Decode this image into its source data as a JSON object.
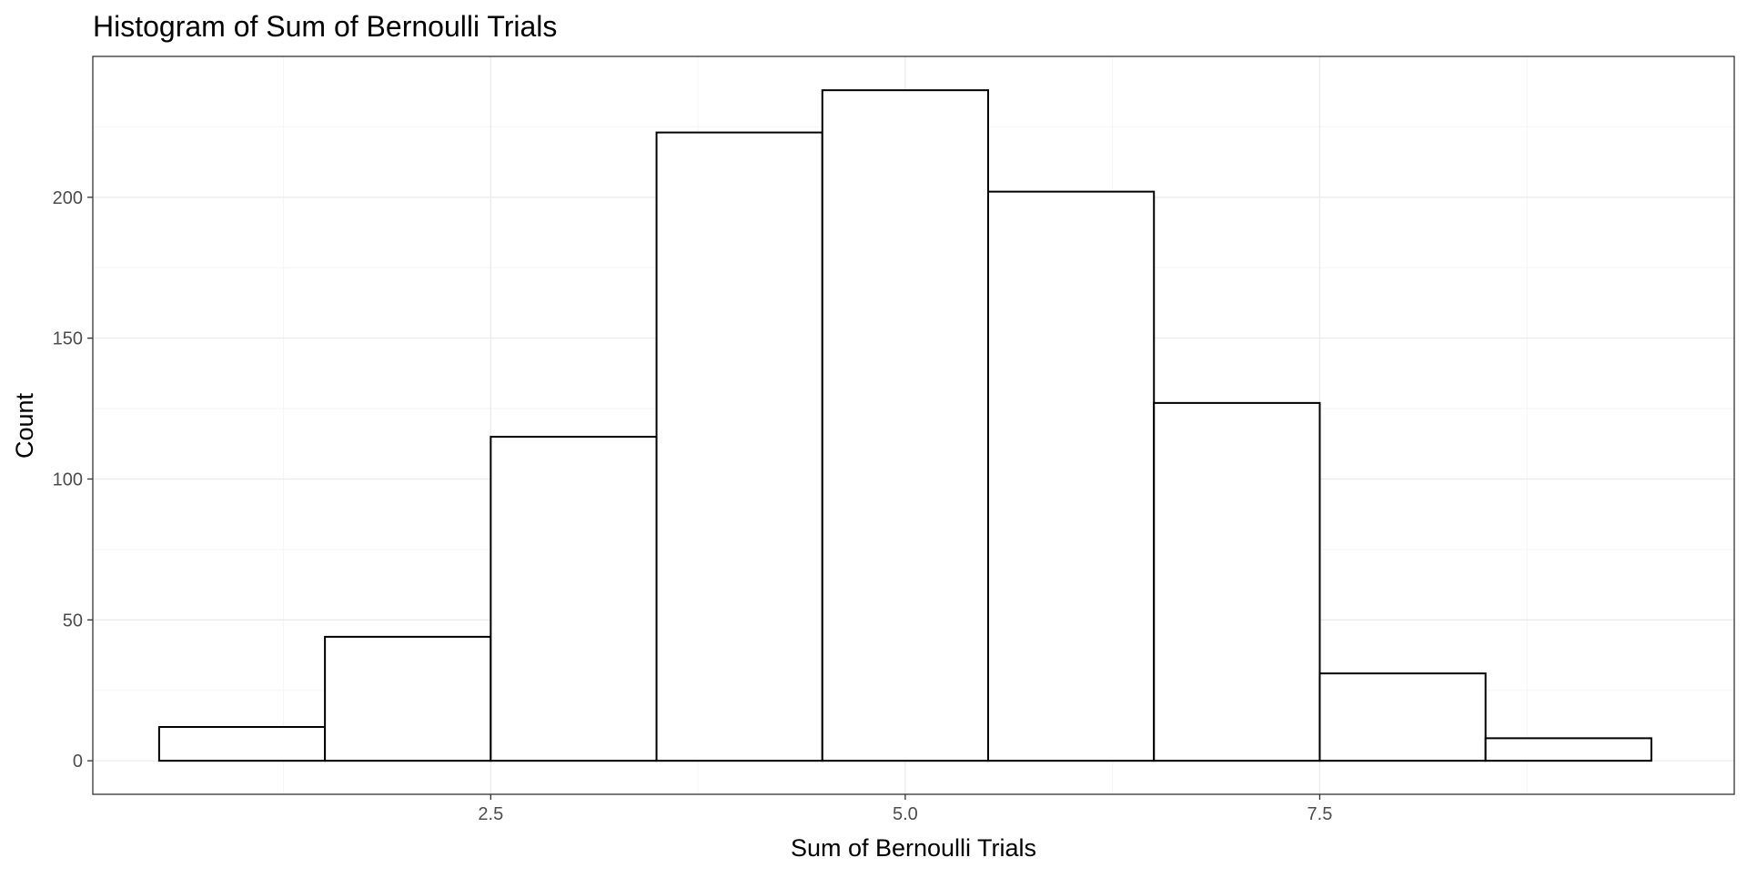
{
  "chart_data": {
    "type": "bar",
    "title": "Histogram of Sum of Bernoulli Trials",
    "xlabel": "Sum of Bernoulli Trials",
    "ylabel": "Count",
    "bins": [
      {
        "x": 1,
        "count": 12
      },
      {
        "x": 2,
        "count": 44
      },
      {
        "x": 3,
        "count": 115
      },
      {
        "x": 4,
        "count": 223
      },
      {
        "x": 5,
        "count": 238
      },
      {
        "x": 6,
        "count": 202
      },
      {
        "x": 7,
        "count": 127
      },
      {
        "x": 8,
        "count": 31
      },
      {
        "x": 9,
        "count": 8
      }
    ],
    "bin_width": 1,
    "xlim": [
      0.1,
      10.0
    ],
    "ylim": [
      -11.9,
      250
    ],
    "x_ticks": [
      {
        "value": 2.5,
        "label": "2.5"
      },
      {
        "value": 5.0,
        "label": "5.0"
      },
      {
        "value": 7.5,
        "label": "7.5"
      }
    ],
    "y_ticks": [
      {
        "value": 0,
        "label": "0"
      },
      {
        "value": 50,
        "label": "50"
      },
      {
        "value": 100,
        "label": "100"
      },
      {
        "value": 150,
        "label": "150"
      },
      {
        "value": 200,
        "label": "200"
      }
    ],
    "x_minor_gridlines": [
      1.25,
      3.75,
      6.25,
      8.75
    ],
    "y_minor_gridlines": [
      25,
      75,
      125,
      175,
      225
    ],
    "grid": true,
    "legend": "none",
    "colors": {
      "bar_fill": "#ffffff",
      "bar_stroke": "#000000",
      "panel_border": "#333333",
      "grid_major": "#ebebeb",
      "grid_minor": "#f5f5f5",
      "tick_label": "#4d4d4d",
      "text": "#000000"
    }
  }
}
